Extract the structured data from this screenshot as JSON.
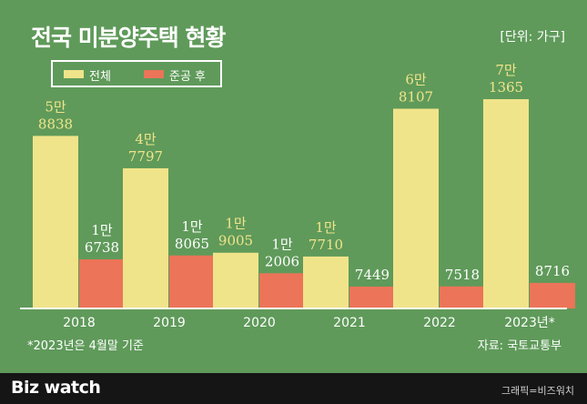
{
  "title": "전국 미분양주택 현황",
  "unit_label": "[단위: 가구]",
  "note": "*2023년은 4월말 기준",
  "source": "자료: 국토교통부",
  "brand": "Biz watch",
  "credit": "그래픽=비즈워치",
  "chart_data": {
    "type": "bar",
    "categories": [
      "2018",
      "2019",
      "2020",
      "2021",
      "2022",
      "2023년*"
    ],
    "ylim": [
      0,
      80000
    ],
    "legend_position": "top-left",
    "series": [
      {
        "name": "전체",
        "color": "#f0e48a",
        "label_color": "#f0e48a",
        "values": [
          58838,
          47797,
          19005,
          17710,
          68107,
          71365
        ],
        "labels": [
          [
            "5만",
            "8838"
          ],
          [
            "4만",
            "7797"
          ],
          [
            "1만",
            "9005"
          ],
          [
            "1만",
            "7710"
          ],
          [
            "6만",
            "8107"
          ],
          [
            "7만",
            "1365"
          ]
        ]
      },
      {
        "name": "준공 후",
        "color": "#ec7458",
        "label_color": "#ffffff",
        "values": [
          16738,
          18065,
          12006,
          7449,
          7518,
          8716
        ],
        "labels": [
          [
            "1만",
            "6738"
          ],
          [
            "1만",
            "8065"
          ],
          [
            "1만",
            "2006"
          ],
          [
            "",
            "7449"
          ],
          [
            "",
            "7518"
          ],
          [
            "",
            "8716"
          ]
        ]
      }
    ]
  }
}
